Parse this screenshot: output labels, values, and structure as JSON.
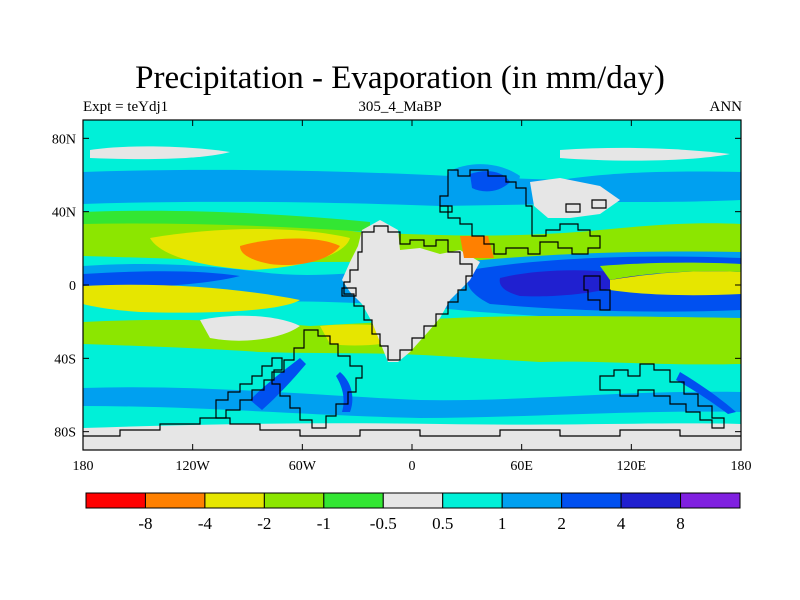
{
  "chart_data": {
    "type": "heatmap",
    "title": "Precipitation - Evaporation (in mm/day)",
    "left_string": "Expt = teYdj1",
    "center_string": "305_4_MaBP",
    "right_string": "ANN",
    "x_ticks": [
      "180",
      "120W",
      "60W",
      "0",
      "60E",
      "120E",
      "180"
    ],
    "x_tick_values": [
      -180,
      -120,
      -60,
      0,
      60,
      120,
      180
    ],
    "y_ticks": [
      "80N",
      "40N",
      "0",
      "40S",
      "80S"
    ],
    "y_tick_values": [
      80,
      40,
      0,
      -40,
      -80
    ],
    "xlim": [
      -180,
      180
    ],
    "ylim": [
      -90,
      90
    ],
    "colorbar": {
      "levels": [
        "-8",
        "-4",
        "-2",
        "-1",
        "-0.5",
        "0.5",
        "1",
        "2",
        "4",
        "8"
      ],
      "colors": [
        "#ff0000",
        "#ff8000",
        "#e6e600",
        "#8ce600",
        "#33e633",
        "#e6e6e6",
        "#00f0d8",
        "#00a0f0",
        "#0050f0",
        "#2020d0",
        "#8020e0"
      ]
    },
    "bands": [
      {
        "lat": 85,
        "value": "0.5 to 1"
      },
      {
        "lat": 55,
        "value": "1 to 2"
      },
      {
        "lat": 40,
        "value": "0.5 to 1"
      },
      {
        "lat": 27,
        "value": "-1 to -0.5"
      },
      {
        "lat": 18,
        "value": "-2 to -1"
      },
      {
        "lat": 6,
        "value": "2 to 4"
      },
      {
        "lat": -5,
        "value": "-2 to -1"
      },
      {
        "lat": -18,
        "value": "1 to 2"
      },
      {
        "lat": -28,
        "value": "-1 to -0.5"
      },
      {
        "lat": -48,
        "value": "0.5 to 1"
      },
      {
        "lat": -62,
        "value": "1 to 2"
      },
      {
        "lat": -85,
        "value": "-0.5 to 0.5"
      }
    ]
  },
  "colors": {
    "land_neutral": "#e6e6e6",
    "coast_line": "#000000"
  }
}
